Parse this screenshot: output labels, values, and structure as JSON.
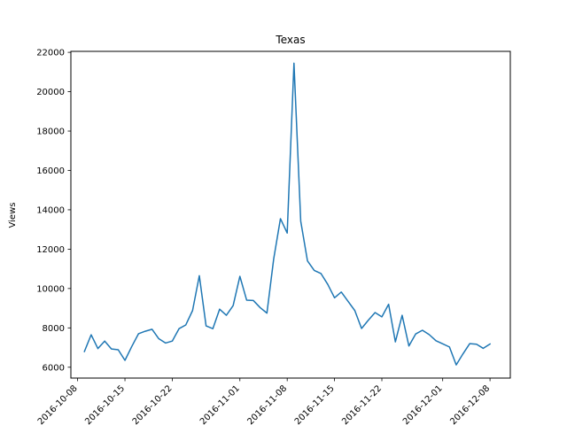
{
  "chart_data": {
    "type": "line",
    "title": "Texas",
    "xlabel": "",
    "ylabel": "Views",
    "grid": false,
    "legend": "none",
    "line_color": "#1f77b4",
    "x_ticks": [
      "2016-10-08",
      "2016-10-15",
      "2016-10-22",
      "2016-11-01",
      "2016-11-08",
      "2016-11-15",
      "2016-11-22",
      "2016-12-01",
      "2016-12-08"
    ],
    "y_ticks": [
      6000,
      8000,
      10000,
      12000,
      14000,
      16000,
      18000,
      20000,
      22000
    ],
    "ylim": [
      5450,
      22050
    ],
    "xlim": [
      "2016-10-07",
      "2016-12-11"
    ],
    "series": [
      {
        "x": [
          "2016-10-09",
          "2016-10-10",
          "2016-10-11",
          "2016-10-12",
          "2016-10-13",
          "2016-10-14",
          "2016-10-15",
          "2016-10-16",
          "2016-10-17",
          "2016-10-18",
          "2016-10-19",
          "2016-10-20",
          "2016-10-21",
          "2016-10-22",
          "2016-10-23",
          "2016-10-24",
          "2016-10-25",
          "2016-10-26",
          "2016-10-27",
          "2016-10-28",
          "2016-10-29",
          "2016-10-30",
          "2016-10-31",
          "2016-11-01",
          "2016-11-02",
          "2016-11-03",
          "2016-11-04",
          "2016-11-05",
          "2016-11-06",
          "2016-11-07",
          "2016-11-08",
          "2016-11-09",
          "2016-11-10",
          "2016-11-11",
          "2016-11-12",
          "2016-11-13",
          "2016-11-14",
          "2016-11-15",
          "2016-11-16",
          "2016-11-17",
          "2016-11-18",
          "2016-11-19",
          "2016-11-20",
          "2016-11-21",
          "2016-11-22",
          "2016-11-23",
          "2016-11-24",
          "2016-11-25",
          "2016-11-26",
          "2016-11-27",
          "2016-11-28",
          "2016-11-29",
          "2016-11-30",
          "2016-12-01",
          "2016-12-02",
          "2016-12-03",
          "2016-12-04",
          "2016-12-05",
          "2016-12-06",
          "2016-12-07",
          "2016-12-08"
        ],
        "values": [
          6800,
          7650,
          6950,
          7330,
          6930,
          6890,
          6350,
          7050,
          7700,
          7830,
          7930,
          7450,
          7230,
          7330,
          7960,
          8150,
          8880,
          10650,
          8100,
          7960,
          8950,
          8640,
          9130,
          10620,
          9410,
          9390,
          9030,
          8750,
          11500,
          13550,
          12820,
          21450,
          13420,
          11400,
          10920,
          10760,
          10210,
          9530,
          9820,
          9350,
          8880,
          7970,
          8390,
          8780,
          8560,
          9200,
          7290,
          8640,
          7080,
          7690,
          7880,
          7660,
          7350,
          7190,
          7030,
          6120,
          6680,
          7200,
          7170,
          6960,
          7180
        ]
      }
    ]
  }
}
